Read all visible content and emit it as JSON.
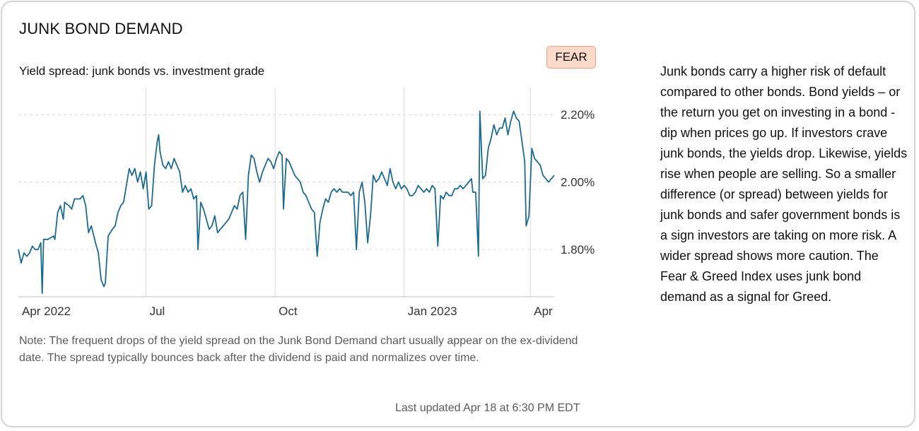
{
  "header": {
    "title": "JUNK BOND DEMAND"
  },
  "chart_header": {
    "subtitle": "Yield spread: junk bonds vs. investment grade",
    "badge": "FEAR"
  },
  "colors": {
    "line": "#1d6a91",
    "badge_bg": "#fbd9ca",
    "badge_border": "#e9a07f",
    "grid": "#d9d9d9"
  },
  "chart_data": {
    "type": "line",
    "title": "Yield spread: junk bonds vs. investment grade",
    "xlabel": "",
    "ylabel": "",
    "x_range": [
      "2022-04-01",
      "2023-04-18"
    ],
    "ylim": [
      1.66,
      2.28
    ],
    "y_ticks": [
      1.8,
      2.0,
      2.2
    ],
    "y_tick_labels": [
      "1.80%",
      "2.00%",
      "2.20%"
    ],
    "x_ticks": [
      {
        "date": "2022-04-01",
        "label": "Apr 2022"
      },
      {
        "date": "2022-07-01",
        "label": "Jul"
      },
      {
        "date": "2022-10-01",
        "label": "Oct"
      },
      {
        "date": "2023-01-01",
        "label": "Jan 2023"
      },
      {
        "date": "2023-04-01",
        "label": "Apr"
      }
    ],
    "grid": true,
    "series": [
      {
        "points": [
          [
            "2022-04-01",
            1.8
          ],
          [
            "2022-04-03",
            1.76
          ],
          [
            "2022-04-05",
            1.79
          ],
          [
            "2022-04-07",
            1.78
          ],
          [
            "2022-04-09",
            1.79
          ],
          [
            "2022-04-11",
            1.81
          ],
          [
            "2022-04-13",
            1.8
          ],
          [
            "2022-04-15",
            1.8
          ],
          [
            "2022-04-17",
            1.82
          ],
          [
            "2022-04-18",
            1.67
          ],
          [
            "2022-04-19",
            1.83
          ],
          [
            "2022-04-22",
            1.83
          ],
          [
            "2022-04-26",
            1.84
          ],
          [
            "2022-04-27",
            1.83
          ],
          [
            "2022-04-29",
            1.91
          ],
          [
            "2022-05-01",
            1.93
          ],
          [
            "2022-05-03",
            1.89
          ],
          [
            "2022-05-04",
            1.94
          ],
          [
            "2022-05-07",
            1.93
          ],
          [
            "2022-05-09",
            1.92
          ],
          [
            "2022-05-11",
            1.95
          ],
          [
            "2022-05-13",
            1.95
          ],
          [
            "2022-05-15",
            1.95
          ],
          [
            "2022-05-17",
            1.96
          ],
          [
            "2022-05-19",
            1.93
          ],
          [
            "2022-05-21",
            1.85
          ],
          [
            "2022-05-23",
            1.87
          ],
          [
            "2022-05-26",
            1.82
          ],
          [
            "2022-05-28",
            1.79
          ],
          [
            "2022-05-30",
            1.71
          ],
          [
            "2022-06-01",
            1.69
          ],
          [
            "2022-06-02",
            1.7
          ],
          [
            "2022-06-04",
            1.84
          ],
          [
            "2022-06-07",
            1.86
          ],
          [
            "2022-06-09",
            1.87
          ],
          [
            "2022-06-11",
            1.91
          ],
          [
            "2022-06-13",
            1.93
          ],
          [
            "2022-06-15",
            1.94
          ],
          [
            "2022-06-17",
            1.99
          ],
          [
            "2022-06-19",
            2.04
          ],
          [
            "2022-06-21",
            2.02
          ],
          [
            "2022-06-23",
            2.04
          ],
          [
            "2022-06-25",
            2.0
          ],
          [
            "2022-06-27",
            2.03
          ],
          [
            "2022-06-29",
            1.98
          ],
          [
            "2022-07-01",
            2.03
          ],
          [
            "2022-07-03",
            1.92
          ],
          [
            "2022-07-05",
            1.93
          ],
          [
            "2022-07-07",
            2.05
          ],
          [
            "2022-07-09",
            2.12
          ],
          [
            "2022-07-10",
            2.14
          ],
          [
            "2022-07-11",
            2.09
          ],
          [
            "2022-07-13",
            2.05
          ],
          [
            "2022-07-15",
            2.04
          ],
          [
            "2022-07-17",
            2.06
          ],
          [
            "2022-07-19",
            2.04
          ],
          [
            "2022-07-21",
            2.07
          ],
          [
            "2022-07-23",
            2.05
          ],
          [
            "2022-07-25",
            2.03
          ],
          [
            "2022-07-27",
            1.97
          ],
          [
            "2022-07-29",
            1.99
          ],
          [
            "2022-07-31",
            1.97
          ],
          [
            "2022-08-02",
            1.98
          ],
          [
            "2022-08-04",
            1.95
          ],
          [
            "2022-08-06",
            1.96
          ],
          [
            "2022-08-07",
            1.8
          ],
          [
            "2022-08-09",
            1.94
          ],
          [
            "2022-08-11",
            1.92
          ],
          [
            "2022-08-13",
            1.89
          ],
          [
            "2022-08-15",
            1.86
          ],
          [
            "2022-08-17",
            1.87
          ],
          [
            "2022-08-19",
            1.9
          ],
          [
            "2022-08-21",
            1.85
          ],
          [
            "2022-08-23",
            1.86
          ],
          [
            "2022-08-25",
            1.87
          ],
          [
            "2022-08-27",
            1.88
          ],
          [
            "2022-08-29",
            1.89
          ],
          [
            "2022-08-31",
            1.91
          ],
          [
            "2022-09-02",
            1.93
          ],
          [
            "2022-09-04",
            1.92
          ],
          [
            "2022-09-06",
            1.96
          ],
          [
            "2022-09-08",
            1.97
          ],
          [
            "2022-09-10",
            1.83
          ],
          [
            "2022-09-12",
            2.02
          ],
          [
            "2022-09-14",
            2.08
          ],
          [
            "2022-09-16",
            2.07
          ],
          [
            "2022-09-18",
            2.03
          ],
          [
            "2022-09-20",
            2.0
          ],
          [
            "2022-09-22",
            2.03
          ],
          [
            "2022-09-24",
            2.05
          ],
          [
            "2022-09-26",
            2.07
          ],
          [
            "2022-09-28",
            2.06
          ],
          [
            "2022-09-30",
            2.04
          ],
          [
            "2022-10-02",
            2.07
          ],
          [
            "2022-10-04",
            2.09
          ],
          [
            "2022-10-06",
            2.08
          ],
          [
            "2022-10-07",
            1.92
          ],
          [
            "2022-10-09",
            2.07
          ],
          [
            "2022-10-11",
            2.06
          ],
          [
            "2022-10-13",
            2.04
          ],
          [
            "2022-10-15",
            2.02
          ],
          [
            "2022-10-17",
            2.01
          ],
          [
            "2022-10-19",
            2.0
          ],
          [
            "2022-10-21",
            1.97
          ],
          [
            "2022-10-23",
            1.96
          ],
          [
            "2022-10-25",
            1.94
          ],
          [
            "2022-10-27",
            1.92
          ],
          [
            "2022-10-29",
            1.91
          ],
          [
            "2022-10-31",
            1.78
          ],
          [
            "2022-11-02",
            1.88
          ],
          [
            "2022-11-04",
            1.92
          ],
          [
            "2022-11-06",
            1.95
          ],
          [
            "2022-11-08",
            1.94
          ],
          [
            "2022-11-10",
            1.97
          ],
          [
            "2022-11-12",
            1.98
          ],
          [
            "2022-11-14",
            1.97
          ],
          [
            "2022-11-16",
            1.98
          ],
          [
            "2022-11-18",
            1.97
          ],
          [
            "2022-11-20",
            1.97
          ],
          [
            "2022-11-22",
            1.97
          ],
          [
            "2022-11-24",
            1.96
          ],
          [
            "2022-11-26",
            1.97
          ],
          [
            "2022-11-28",
            1.8
          ],
          [
            "2022-11-30",
            1.97
          ],
          [
            "2022-12-02",
            2.0
          ],
          [
            "2022-12-04",
            1.94
          ],
          [
            "2022-12-06",
            1.82
          ],
          [
            "2022-12-08",
            1.9
          ],
          [
            "2022-12-10",
            2.02
          ],
          [
            "2022-12-12",
            2.0
          ],
          [
            "2022-12-14",
            2.01
          ],
          [
            "2022-12-16",
            2.03
          ],
          [
            "2022-12-18",
            2.01
          ],
          [
            "2022-12-20",
            1.99
          ],
          [
            "2022-12-22",
            2.04
          ],
          [
            "2022-12-24",
            2.0
          ],
          [
            "2022-12-26",
            1.98
          ],
          [
            "2022-12-28",
            2.0
          ],
          [
            "2022-12-30",
            1.98
          ],
          [
            "2023-01-01",
            1.99
          ],
          [
            "2023-01-03",
            1.98
          ],
          [
            "2023-01-05",
            1.96
          ],
          [
            "2023-01-07",
            1.96
          ],
          [
            "2023-01-09",
            1.97
          ],
          [
            "2023-01-11",
            1.99
          ],
          [
            "2023-01-13",
            1.98
          ],
          [
            "2023-01-15",
            1.97
          ],
          [
            "2023-01-17",
            1.98
          ],
          [
            "2023-01-19",
            1.97
          ],
          [
            "2023-01-21",
            1.99
          ],
          [
            "2023-01-23",
            1.98
          ],
          [
            "2023-01-25",
            1.81
          ],
          [
            "2023-01-27",
            1.96
          ],
          [
            "2023-01-29",
            1.95
          ],
          [
            "2023-01-31",
            1.97
          ],
          [
            "2023-02-02",
            1.96
          ],
          [
            "2023-02-04",
            1.96
          ],
          [
            "2023-02-06",
            1.98
          ],
          [
            "2023-02-08",
            1.98
          ],
          [
            "2023-02-10",
            1.99
          ],
          [
            "2023-02-12",
            1.98
          ],
          [
            "2023-02-14",
            1.99
          ],
          [
            "2023-02-16",
            2.0
          ],
          [
            "2023-02-18",
            2.01
          ],
          [
            "2023-02-19",
            1.97
          ],
          [
            "2023-02-21",
            1.97
          ],
          [
            "2023-02-23",
            1.78
          ],
          [
            "2023-02-24",
            2.21
          ],
          [
            "2023-02-26",
            2.01
          ],
          [
            "2023-02-28",
            2.02
          ],
          [
            "2023-03-02",
            2.1
          ],
          [
            "2023-03-04",
            2.13
          ],
          [
            "2023-03-06",
            2.17
          ],
          [
            "2023-03-08",
            2.14
          ],
          [
            "2023-03-10",
            2.16
          ],
          [
            "2023-03-12",
            2.16
          ],
          [
            "2023-03-14",
            2.19
          ],
          [
            "2023-03-16",
            2.14
          ],
          [
            "2023-03-18",
            2.18
          ],
          [
            "2023-03-20",
            2.21
          ],
          [
            "2023-03-22",
            2.19
          ],
          [
            "2023-03-24",
            2.18
          ],
          [
            "2023-03-26",
            2.12
          ],
          [
            "2023-03-28",
            2.06
          ],
          [
            "2023-03-29",
            1.87
          ],
          [
            "2023-03-31",
            1.9
          ],
          [
            "2023-04-02",
            2.1
          ],
          [
            "2023-04-04",
            2.07
          ],
          [
            "2023-04-06",
            2.06
          ],
          [
            "2023-04-08",
            2.05
          ],
          [
            "2023-04-10",
            2.02
          ],
          [
            "2023-04-12",
            2.01
          ],
          [
            "2023-04-14",
            2.0
          ],
          [
            "2023-04-16",
            2.01
          ],
          [
            "2023-04-18",
            2.02
          ]
        ]
      }
    ]
  },
  "note": "Note: The frequent drops of the yield spread on the Junk Bond Demand chart usually appear on the ex-dividend date. The spread typically bounces back after the dividend is paid and normalizes over time.",
  "updated": "Last updated Apr 18 at 6:30 PM EDT",
  "description": "Junk bonds carry a higher risk of default compared to other bonds. Bond yields – or the return you get on investing in a bond - dip when prices go up. If investors crave junk bonds, the yields drop. Likewise, yields rise when people are selling. So a smaller difference (or spread) between yields for junk bonds and safer government bonds is a sign investors are taking on more risk. A wider spread shows more caution. The Fear & Greed Index uses junk bond demand as a signal for Greed."
}
